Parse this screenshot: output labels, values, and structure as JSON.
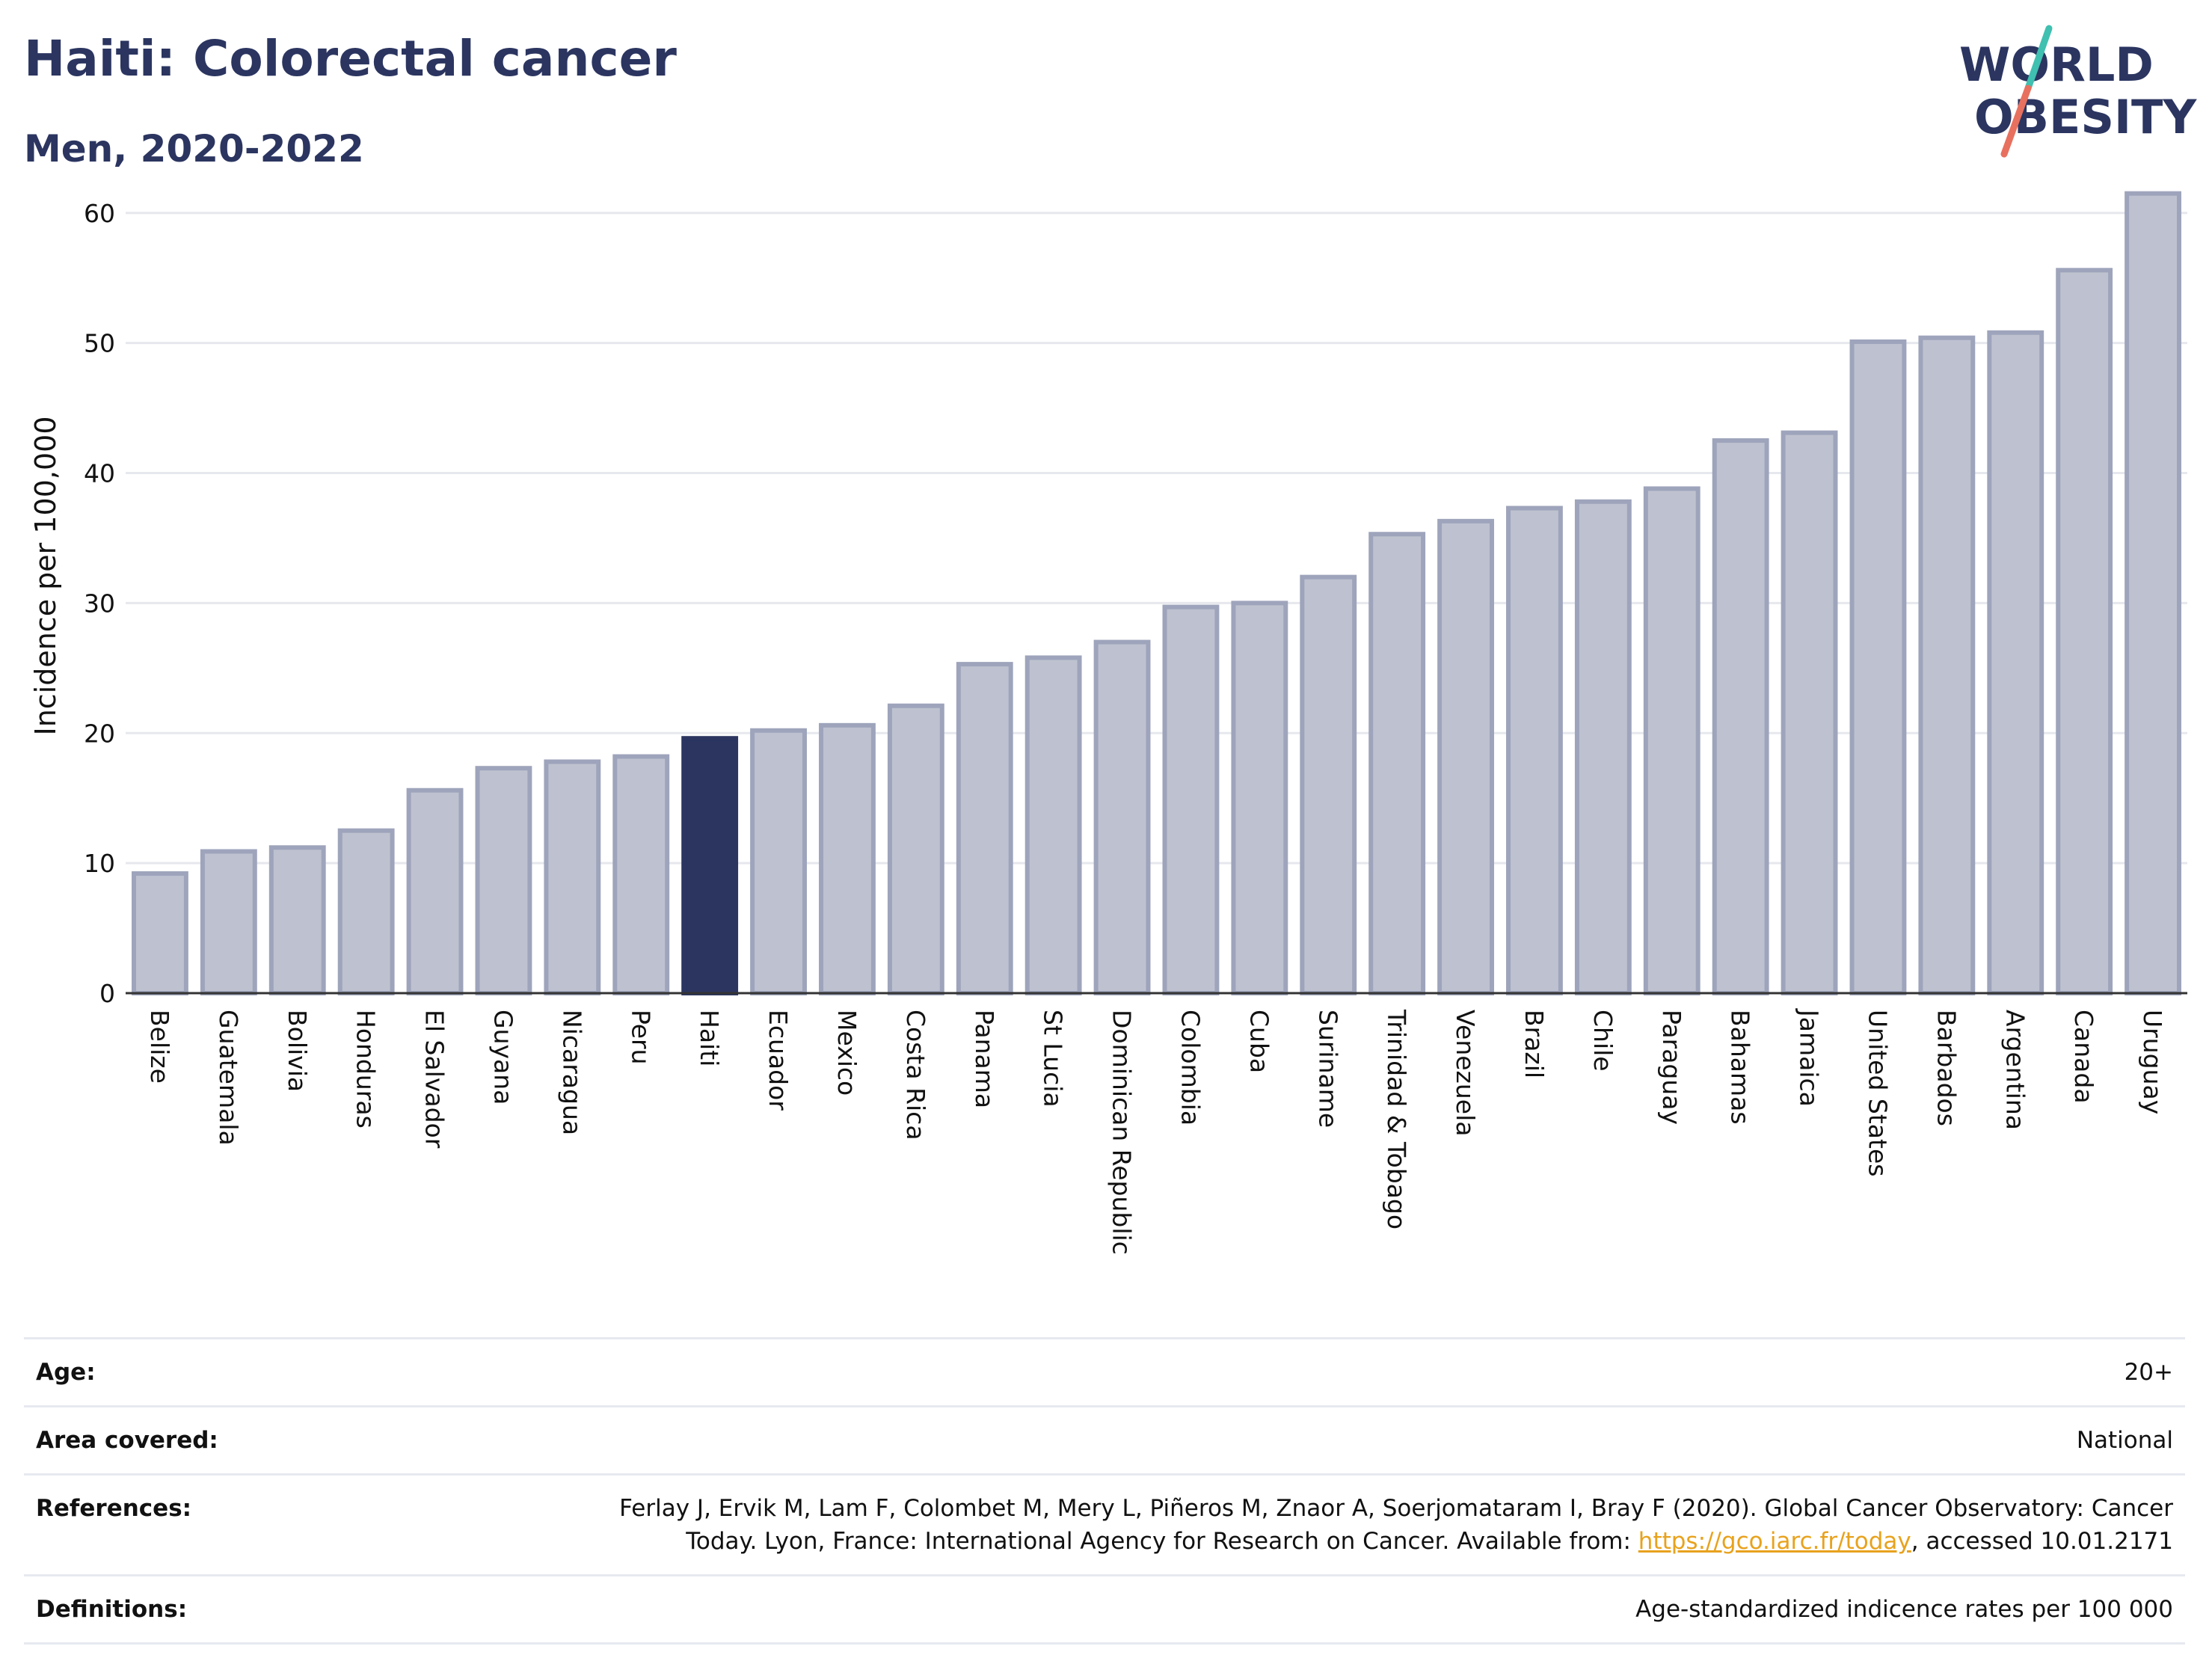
{
  "header": {
    "title": "Haiti: Colorectal cancer",
    "subtitle": "Men, 2020-2022"
  },
  "logo": {
    "line1": "WORLD",
    "line2": "OBESITY",
    "colors": {
      "text": "#2b3560",
      "slash_top": "#3fc0b0",
      "slash_bottom": "#e8705f"
    }
  },
  "chart_data": {
    "type": "bar",
    "ylabel": "Incidence per 100,000",
    "ylim": [
      0,
      62
    ],
    "yticks": [
      0,
      10,
      20,
      30,
      40,
      50,
      60
    ],
    "grid": true,
    "highlight": "Haiti",
    "colors": {
      "bar": "#bec2d0",
      "bar_border": "#9ea4bb",
      "highlight": "#2b3560"
    },
    "categories": [
      "Belize",
      "Guatemala",
      "Bolivia",
      "Honduras",
      "El Salvador",
      "Guyana",
      "Nicaragua",
      "Peru",
      "Haiti",
      "Ecuador",
      "Mexico",
      "Costa Rica",
      "Panama",
      "St Lucia",
      "Dominican Republic",
      "Colombia",
      "Cuba",
      "Suriname",
      "Trinidad & Tobago",
      "Venezuela",
      "Brazil",
      "Chile",
      "Paraguay",
      "Bahamas",
      "Jamaica",
      "United States",
      "Barbados",
      "Argentina",
      "Canada",
      "Uruguay"
    ],
    "values": [
      9.2,
      10.9,
      11.2,
      12.5,
      15.6,
      17.3,
      17.8,
      18.2,
      19.6,
      20.2,
      20.6,
      22.1,
      25.3,
      25.8,
      27.0,
      29.7,
      30.0,
      32.0,
      35.3,
      36.3,
      37.3,
      37.8,
      38.8,
      42.5,
      43.1,
      50.1,
      50.4,
      50.8,
      55.6,
      61.5
    ]
  },
  "info": {
    "age_label": "Age:",
    "age_value": "20+",
    "area_label": "Area covered:",
    "area_value": "National",
    "references_label": "References:",
    "references_text_before": "Ferlay J, Ervik M, Lam F, Colombet M, Mery L, Piñeros M, Znaor A, Soerjomataram I, Bray F (2020). Global Cancer Observatory: Cancer Today. Lyon, France: International Agency for Research on Cancer. Available from: ",
    "references_link": "https://gco.iarc.fr/today",
    "references_text_after": ", accessed 10.01.2171",
    "definitions_label": "Definitions:",
    "definitions_value": "Age-standardized indicence rates per 100 000"
  }
}
